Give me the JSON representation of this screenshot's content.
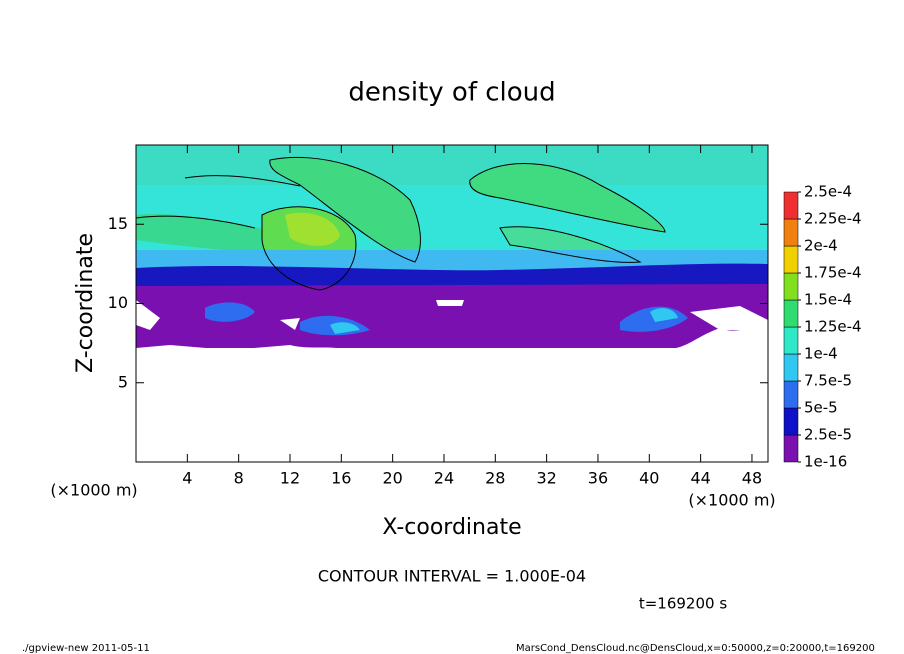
{
  "chart_data": {
    "type": "contour",
    "title": "density of cloud",
    "xlabel": "X-coordinate",
    "ylabel": "Z-coordinate",
    "xunit": "(×1000 m)",
    "yunit": "(×1000 m)",
    "xlim": [
      0,
      49.25
    ],
    "ylim": [
      0,
      20
    ],
    "xticks": [
      4,
      8,
      12,
      16,
      20,
      24,
      28,
      32,
      36,
      40,
      44,
      48
    ],
    "yticks": [
      5,
      10,
      15
    ],
    "colorbar_ticks": [
      {
        "value": 1e-16,
        "label": "1e-16"
      },
      {
        "value": 2.5e-05,
        "label": "2.5e-5"
      },
      {
        "value": 5e-05,
        "label": "5e-5"
      },
      {
        "value": 7.5e-05,
        "label": "7.5e-5"
      },
      {
        "value": 0.0001,
        "label": "1e-4"
      },
      {
        "value": 0.000125,
        "label": "1.25e-4"
      },
      {
        "value": 0.00015,
        "label": "1.5e-4"
      },
      {
        "value": 0.000175,
        "label": "1.75e-4"
      },
      {
        "value": 0.0002,
        "label": "2e-4"
      },
      {
        "value": 0.000225,
        "label": "2.25e-4"
      },
      {
        "value": 0.00025,
        "label": "2.5e-4"
      }
    ],
    "colors": [
      "#7a10b0",
      "#1010c8",
      "#2e6cf0",
      "#30c8f0",
      "#2ee8c8",
      "#30dc70",
      "#80e020",
      "#f0d000",
      "#f08010",
      "#f03030"
    ],
    "annotations": [
      "CONTOUR INTERVAL = 1.000E-04",
      "t=169200 s",
      "./gpview-new  2011-05-11",
      "MarsCond_DensCloud.nc@DensCloud,x=0:50000,z=0:20000,t=169200"
    ]
  }
}
